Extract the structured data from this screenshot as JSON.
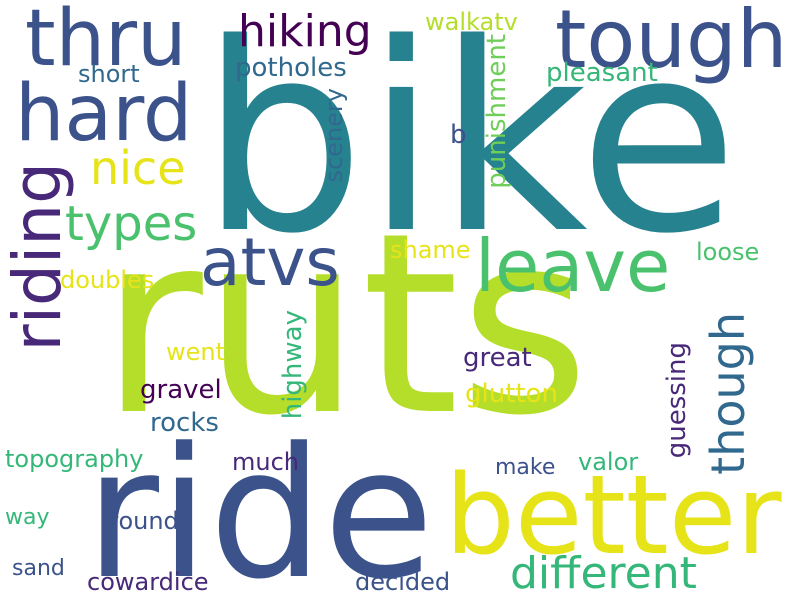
{
  "colors": {
    "navy": "#3b528b",
    "teal": "#26828e",
    "lime": "#b5de2b",
    "yellow": "#e6e419",
    "green": "#4ac16d",
    "seagreen": "#35b779",
    "purple": "#440154",
    "indigo": "#482878",
    "slate": "#31688e",
    "mint": "#6ece58"
  },
  "words": [
    "bike",
    "ruts",
    "ride",
    "better",
    "tough",
    "thru",
    "hard",
    "riding",
    "leave",
    "atvs",
    "different",
    "types",
    "hiking",
    "nice",
    "though",
    "walkatv",
    "potholes",
    "short",
    "pleasant",
    "punishment",
    "scenery",
    "b",
    "shame",
    "loose",
    "doubles",
    "highway",
    "went",
    "great",
    "gravel",
    "glutton",
    "guessing",
    "rocks",
    "topography",
    "much",
    "make",
    "valor",
    "way",
    "found",
    "sand",
    "cowardice",
    "decided"
  ]
}
